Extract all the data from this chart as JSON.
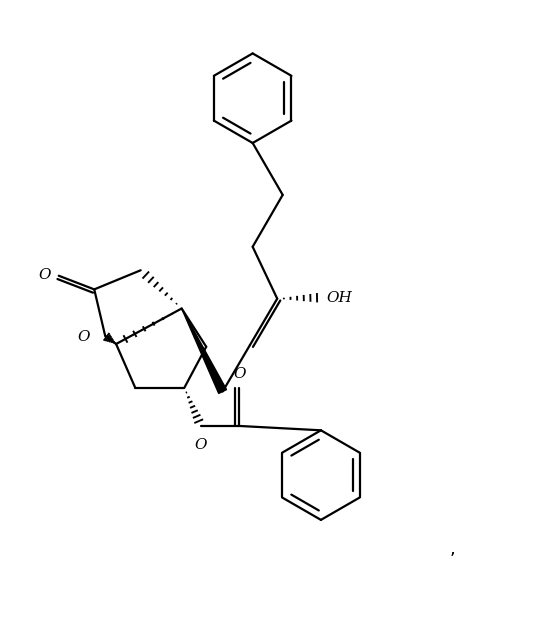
{
  "figsize": [
    5.49,
    6.17
  ],
  "dpi": 100,
  "bg_color": "#ffffff",
  "line_color": "#000000",
  "line_width": 1.6,
  "text_color": "#000000",
  "font_size": 11,
  "OH_label": "OH",
  "O_labels": [
    "O",
    "O",
    "O",
    "O"
  ],
  "comma": ","
}
